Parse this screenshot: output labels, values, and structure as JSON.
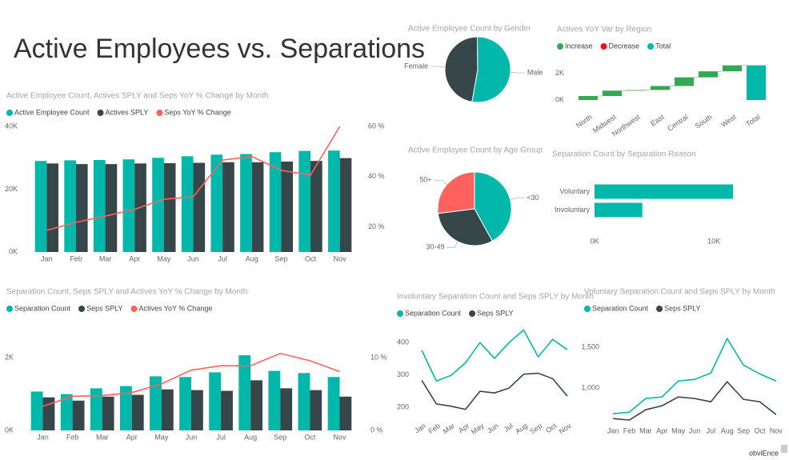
{
  "title": "Active Employees vs. Separations",
  "brand": "obviEnce",
  "chart_data": [
    {
      "type": "bar",
      "title": "Active Employee Count, Actives SPLY and Seps YoY % Change by Month",
      "categories": [
        "Jan",
        "Feb",
        "Mar",
        "Apr",
        "May",
        "Jun",
        "Jul",
        "Aug",
        "Sep",
        "Oct",
        "Nov"
      ],
      "series": [
        {
          "name": "Active Employee Count",
          "color": "#01B8AA",
          "values": [
            29000,
            29200,
            29300,
            29500,
            30000,
            30500,
            31000,
            31200,
            31800,
            32200,
            32300
          ]
        },
        {
          "name": "Actives SPLY",
          "color": "#374649",
          "values": [
            28200,
            28000,
            28000,
            28200,
            28300,
            28400,
            28600,
            28600,
            28800,
            29000,
            29900
          ]
        },
        {
          "name": "Seps YoY % Change",
          "color": "#FD625E",
          "mark": "line",
          "axis": "y2",
          "values": [
            18.6,
            21.8,
            24.3,
            27,
            31,
            32,
            46.6,
            48,
            42.5,
            40.6,
            60
          ]
        }
      ],
      "ylim": [
        0,
        40000
      ],
      "yticks": [
        {
          "value": 0,
          "label": "0K"
        },
        {
          "value": 20000,
          "label": "20K"
        },
        {
          "value": 40000,
          "label": "40K"
        }
      ],
      "y2lim": [
        10,
        60
      ],
      "y2ticks": [
        {
          "value": 20,
          "label": "20 %"
        },
        {
          "value": 40,
          "label": "40 %"
        },
        {
          "value": 60,
          "label": "60 %"
        }
      ]
    },
    {
      "type": "pie",
      "title": "Active Employee Count by Gender",
      "categories": [
        "Female",
        "Male"
      ],
      "values": [
        47,
        53
      ],
      "colors": [
        "#374649",
        "#01B8AA"
      ]
    },
    {
      "type": "waterfall",
      "title": "Actives YoY Var by Region",
      "legend": [
        {
          "name": "Increase",
          "color": "#35A852"
        },
        {
          "name": "Decrease",
          "color": "#E81123"
        },
        {
          "name": "Total",
          "color": "#01B8AA"
        }
      ],
      "categories": [
        "North",
        "Midwest",
        "Northwest",
        "East",
        "Central",
        "South",
        "West",
        "Total"
      ],
      "values": [
        300,
        400,
        50,
        300,
        650,
        450,
        450,
        2600
      ],
      "ylim": [
        -600,
        3000
      ],
      "yticks": [
        {
          "value": 0,
          "label": "0K"
        },
        {
          "value": 2000,
          "label": "2K"
        }
      ]
    },
    {
      "type": "pie",
      "title": "Active Employee Count by Age Group",
      "categories": [
        "<30",
        "30-49",
        "50+"
      ],
      "values": [
        42,
        31,
        27
      ],
      "colors": [
        "#01B8AA",
        "#374649",
        "#FD625E"
      ]
    },
    {
      "type": "bar",
      "orientation": "horizontal",
      "title": "Separation Count by Separation Reason",
      "categories": [
        "Voluntary",
        "Involuntary"
      ],
      "values": [
        11600,
        4000
      ],
      "color": "#01B8AA",
      "xlim": [
        0,
        12000
      ],
      "xticks": [
        {
          "value": 0,
          "label": "0K"
        },
        {
          "value": 10000,
          "label": "10K"
        }
      ]
    },
    {
      "type": "bar",
      "title": "Separation Count, Seps SPLY and Actives YoY % Change by Month",
      "categories": [
        "Jan",
        "Feb",
        "Mar",
        "Apr",
        "May",
        "Jun",
        "Jul",
        "Aug",
        "Sep",
        "Oct",
        "Nov"
      ],
      "series": [
        {
          "name": "Separation Count",
          "color": "#01B8AA",
          "values": [
            1070,
            1000,
            1160,
            1220,
            1490,
            1470,
            1600,
            2070,
            1640,
            1580,
            1470
          ]
        },
        {
          "name": "Seps SPLY",
          "color": "#374649",
          "values": [
            910,
            820,
            930,
            980,
            1130,
            1110,
            1090,
            1380,
            1160,
            1110,
            930
          ]
        },
        {
          "name": "Actives YoY % Change",
          "color": "#FD625E",
          "mark": "line",
          "axis": "y2",
          "values": [
            3.3,
            4.7,
            4.8,
            5.2,
            6.4,
            8.3,
            8.9,
            8.9,
            10.6,
            9.6,
            8.1
          ]
        }
      ],
      "ylim": [
        0,
        2600
      ],
      "yticks": [
        {
          "value": 0,
          "label": "0K"
        },
        {
          "value": 2000,
          "label": "2K"
        }
      ],
      "y2lim": [
        0,
        13
      ],
      "y2ticks": [
        {
          "value": 0,
          "label": "0 %"
        },
        {
          "value": 10,
          "label": "10 %"
        }
      ]
    },
    {
      "type": "line",
      "title": "Involuntary Separation Count and Seps SPLY by Month",
      "categories": [
        "Jan",
        "Feb",
        "Mar",
        "Apr",
        "May",
        "Jun",
        "Jul",
        "Aug",
        "Sep",
        "Oct",
        "Nov"
      ],
      "series": [
        {
          "name": "Separation Count",
          "color": "#01B8AA",
          "values": [
            376,
            281,
            298,
            337,
            400,
            351,
            400,
            439,
            356,
            410,
            378
          ]
        },
        {
          "name": "Seps SPLY",
          "color": "#374649",
          "values": [
            283,
            210,
            203,
            193,
            249,
            244,
            259,
            302,
            305,
            288,
            234
          ]
        }
      ],
      "ylim": [
        170,
        460
      ],
      "yticks": [
        200,
        300,
        400
      ]
    },
    {
      "type": "line",
      "title": "Voluntary Separation Count and Seps SPLY by Month",
      "categories": [
        "Jan",
        "Feb",
        "Mar",
        "Apr",
        "May",
        "Jun",
        "Jul",
        "Aug",
        "Sep",
        "Oct",
        "Nov"
      ],
      "series": [
        {
          "name": "Separation Count",
          "color": "#01B8AA",
          "values": [
            686,
            706,
            873,
            892,
            1088,
            1108,
            1186,
            1608,
            1284,
            1176,
            1088
          ]
        },
        {
          "name": "Seps SPLY",
          "color": "#374649",
          "values": [
            627,
            608,
            735,
            784,
            892,
            873,
            833,
            1078,
            863,
            833,
            676
          ]
        }
      ],
      "ylim": [
        560,
        1650
      ],
      "yticks": [
        {
          "value": 1000,
          "label": "1,000"
        },
        {
          "value": 1500,
          "label": "1,500"
        }
      ]
    }
  ]
}
